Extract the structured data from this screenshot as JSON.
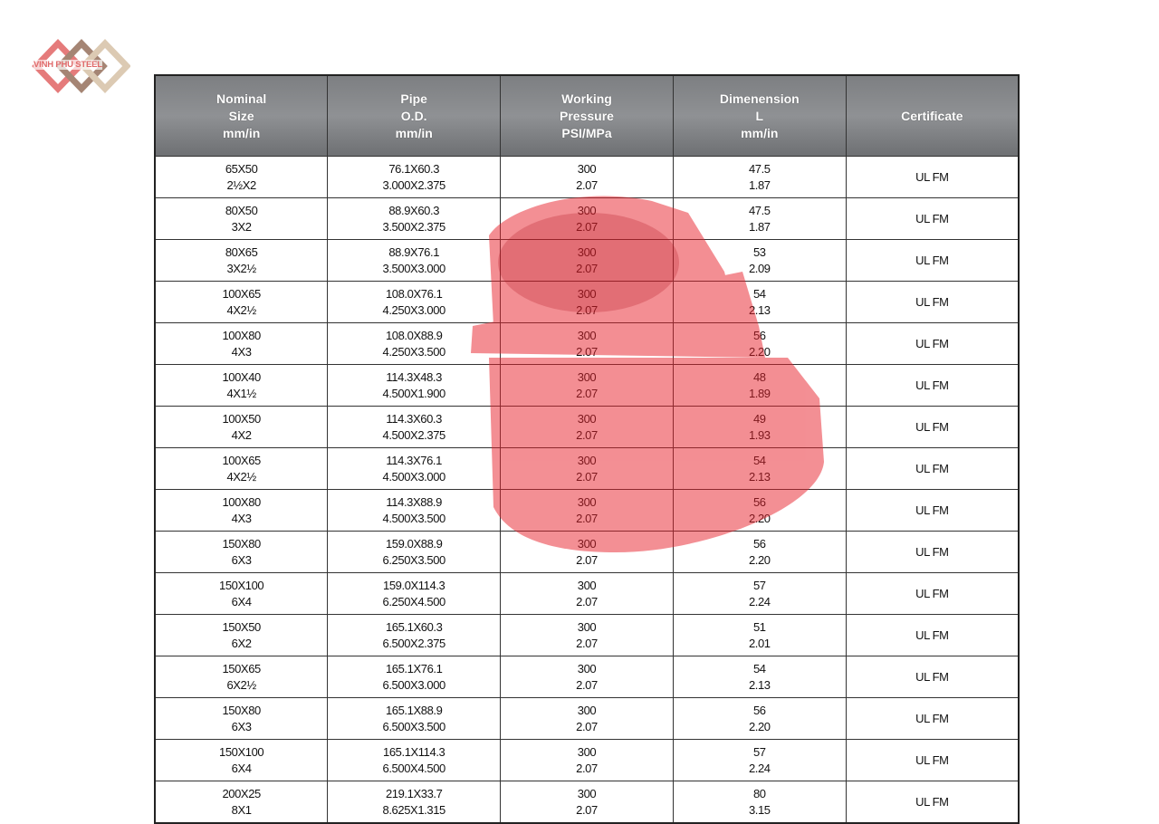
{
  "logo": {
    "text": "VINH PHU STEEL",
    "colors": [
      "#e06a6a",
      "#9b7a68",
      "#d8c2a8"
    ]
  },
  "table": {
    "headers": [
      [
        "Nominal",
        "Size",
        "mm/in"
      ],
      [
        "Pipe",
        "O.D.",
        "mm/in"
      ],
      [
        "Working",
        "Pressure",
        "PSI/MPa"
      ],
      [
        "Dimenension",
        "L",
        "mm/in"
      ],
      [
        "Certificate"
      ]
    ],
    "rows": [
      [
        [
          "65X50",
          "2½X2"
        ],
        [
          "76.1X60.3",
          "3.000X2.375"
        ],
        [
          "300",
          "2.07"
        ],
        [
          "47.5",
          "1.87"
        ],
        [
          "UL FM"
        ]
      ],
      [
        [
          "80X50",
          "3X2"
        ],
        [
          "88.9X60.3",
          "3.500X2.375"
        ],
        [
          "300",
          "2.07"
        ],
        [
          "47.5",
          "1.87"
        ],
        [
          "UL FM"
        ]
      ],
      [
        [
          "80X65",
          "3X2½"
        ],
        [
          "88.9X76.1",
          "3.500X3.000"
        ],
        [
          "300",
          "2.07"
        ],
        [
          "53",
          "2.09"
        ],
        [
          "UL FM"
        ]
      ],
      [
        [
          "100X65",
          "4X2½"
        ],
        [
          "108.0X76.1",
          "4.250X3.000"
        ],
        [
          "300",
          "2.07"
        ],
        [
          "54",
          "2.13"
        ],
        [
          "UL FM"
        ]
      ],
      [
        [
          "100X80",
          "4X3"
        ],
        [
          "108.0X88.9",
          "4.250X3.500"
        ],
        [
          "300",
          "2.07"
        ],
        [
          "56",
          "2.20"
        ],
        [
          "UL FM"
        ]
      ],
      [
        [
          "100X40",
          "4X1½"
        ],
        [
          "114.3X48.3",
          "4.500X1.900"
        ],
        [
          "300",
          "2.07"
        ],
        [
          "48",
          "1.89"
        ],
        [
          "UL FM"
        ]
      ],
      [
        [
          "100X50",
          "4X2"
        ],
        [
          "114.3X60.3",
          "4.500X2.375"
        ],
        [
          "300",
          "2.07"
        ],
        [
          "49",
          "1.93"
        ],
        [
          "UL FM"
        ]
      ],
      [
        [
          "100X65",
          "4X2½"
        ],
        [
          "114.3X76.1",
          "4.500X3.000"
        ],
        [
          "300",
          "2.07"
        ],
        [
          "54",
          "2.13"
        ],
        [
          "UL FM"
        ]
      ],
      [
        [
          "100X80",
          "4X3"
        ],
        [
          "114.3X88.9",
          "4.500X3.500"
        ],
        [
          "300",
          "2.07"
        ],
        [
          "56",
          "2.20"
        ],
        [
          "UL FM"
        ]
      ],
      [
        [
          "150X80",
          "6X3"
        ],
        [
          "159.0X88.9",
          "6.250X3.500"
        ],
        [
          "300",
          "2.07"
        ],
        [
          "56",
          "2.20"
        ],
        [
          "UL FM"
        ]
      ],
      [
        [
          "150X100",
          "6X4"
        ],
        [
          "159.0X114.3",
          "6.250X4.500"
        ],
        [
          "300",
          "2.07"
        ],
        [
          "57",
          "2.24"
        ],
        [
          "UL FM"
        ]
      ],
      [
        [
          "150X50",
          "6X2"
        ],
        [
          "165.1X60.3",
          "6.500X2.375"
        ],
        [
          "300",
          "2.07"
        ],
        [
          "51",
          "2.01"
        ],
        [
          "UL FM"
        ]
      ],
      [
        [
          "150X65",
          "6X2½"
        ],
        [
          "165.1X76.1",
          "6.500X3.000"
        ],
        [
          "300",
          "2.07"
        ],
        [
          "54",
          "2.13"
        ],
        [
          "UL FM"
        ]
      ],
      [
        [
          "150X80",
          "6X3"
        ],
        [
          "165.1X88.9",
          "6.500X3.500"
        ],
        [
          "300",
          "2.07"
        ],
        [
          "56",
          "2.20"
        ],
        [
          "UL FM"
        ]
      ],
      [
        [
          "150X100",
          "6X4"
        ],
        [
          "165.1X114.3",
          "6.500X4.500"
        ],
        [
          "300",
          "2.07"
        ],
        [
          "57",
          "2.24"
        ],
        [
          "UL FM"
        ]
      ],
      [
        [
          "200X25",
          "8X1"
        ],
        [
          "219.1X33.7",
          "8.625X1.315"
        ],
        [
          "300",
          "2.07"
        ],
        [
          "80",
          "3.15"
        ],
        [
          "UL FM"
        ]
      ]
    ]
  },
  "watermark": {
    "color": "#e8202a"
  }
}
